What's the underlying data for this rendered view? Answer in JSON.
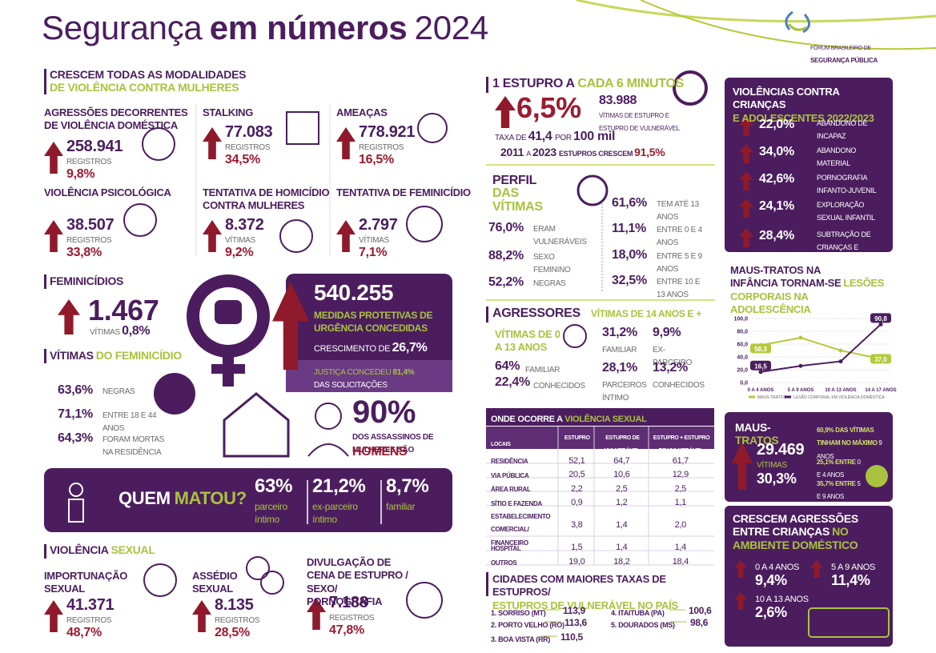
{
  "header": {
    "title_light": "Segurança",
    "title_bold": "em números",
    "year": "2024",
    "logo_line1": "FÓRUM BRASILEIRO DE",
    "logo_line2": "SEGURANÇA PÚBLICA"
  },
  "violencia_mulheres": {
    "heading": "CRESCEM TODAS AS MODALIDADES",
    "heading_highlight": "DE VIOLÊNCIA CONTRA MULHERES",
    "items": [
      {
        "label": "AGRESSÕES DECORRENTES DE VIOLÊNCIA DOMÉSTICA",
        "value": "258.941",
        "unit": "REGISTROS",
        "growth": "9,8%"
      },
      {
        "label": "STALKING",
        "value": "77.083",
        "unit": "REGISTROS",
        "growth": "34,5%"
      },
      {
        "label": "AMEAÇAS",
        "value": "778.921",
        "unit": "REGISTROS",
        "growth": "16,5%"
      },
      {
        "label": "VIOLÊNCIA PSICOLÓGICA",
        "value": "38.507",
        "unit": "REGISTROS",
        "growth": "33,8%"
      },
      {
        "label": "TENTATIVA DE HOMICÍDIO CONTRA MULHERES",
        "value": "8.372",
        "unit": "VÍTIMAS",
        "growth": "9,2%"
      },
      {
        "label": "TENTATIVA DE FEMINICÍDIO",
        "value": "2.797",
        "unit": "VÍTIMAS",
        "growth": "7,1%"
      }
    ]
  },
  "feminicidios": {
    "heading": "FEMINICÍDIOS",
    "value": "1.467",
    "unit": "VÍTIMAS",
    "growth": "0,8%"
  },
  "medidas": {
    "value": "540.255",
    "label": "MEDIDAS PROTETIVAS DE URGÊNCIA CONCEDIDAS",
    "growth_label": "CRESCIMENTO DE",
    "growth": "26,7%",
    "granted_label": "JUSTIÇA CONCEDEU",
    "granted": "81,4%",
    "granted_suffix": "DAS SOLICITAÇÕES"
  },
  "vitimas_feminicidio": {
    "heading": "VÍTIMAS",
    "heading_highlight": "DO FEMINICÍDIO",
    "rows": [
      {
        "value": "63,6%",
        "label": "NEGRAS"
      },
      {
        "value": "71,1%",
        "label": "ENTRE 18 E 44 ANOS"
      },
      {
        "value": "64,3%",
        "label": "FORAM MORTAS NA RESIDÊNCIA"
      }
    ]
  },
  "assassinos": {
    "value": "90%",
    "label": "DOS ASSASSINOS DE MULHERES SÃO",
    "highlight": "HOMENS"
  },
  "quem_matou": {
    "title": "QUEM",
    "title_highlight": "MATOU?",
    "stats": [
      {
        "value": "63%",
        "label": "parceiro íntimo"
      },
      {
        "value": "21,2%",
        "label": "ex-parceiro íntimo"
      },
      {
        "value": "8,7%",
        "label": "familiar"
      }
    ]
  },
  "violencia_sexual": {
    "heading": "VIOLÊNCIA",
    "heading_highlight": "SEXUAL",
    "items": [
      {
        "label": "IMPORTUNAÇÃO SEXUAL",
        "value": "41.371",
        "unit": "REGISTROS",
        "growth": "48,7%"
      },
      {
        "label": "ASSÉDIO SEXUAL",
        "value": "8.135",
        "unit": "REGISTROS",
        "growth": "28,5%"
      },
      {
        "label": "DIVULGAÇÃO DE CENA DE ESTUPRO / SEXO/ PORNOGRAFIA",
        "value": "7.188",
        "unit": "REGISTROS",
        "growth": "47,8%"
      }
    ]
  },
  "estupro": {
    "heading": "1 ESTUPRO A",
    "heading_highlight": "CADA 6 MINUTOS",
    "growth": "6,5%",
    "value": "83.988",
    "value_label": "VÍTIMAS DE ESTUPRO E ESTUPRO DE VULNERÁVEL",
    "rate_prefix": "TAXA DE",
    "rate": "41,4",
    "rate_mid": "POR",
    "rate_base": "100 mil",
    "from": "2011",
    "to_word": "A",
    "to": "2023",
    "trend_label": "ESTUPROS CRESCEM",
    "trend": "91,5%"
  },
  "perfil": {
    "heading": "PERFIL",
    "heading_highlight": "DAS VÍTIMAS",
    "left": [
      {
        "value": "76,0%",
        "label": "ERAM VULNERÁVEIS"
      },
      {
        "value": "88,2%",
        "label": "SEXO FEMININO"
      },
      {
        "value": "52,2%",
        "label": "NEGRAS"
      }
    ],
    "right": [
      {
        "value": "61,6%",
        "label": "TEM ATÉ 13 ANOS"
      },
      {
        "value": "11,1%",
        "label": "ENTRE 0 E 4 ANOS"
      },
      {
        "value": "18,0%",
        "label": "ENTRE 5 E 9 ANOS"
      },
      {
        "value": "32,5%",
        "label": "ENTRE 10 E 13 ANOS"
      }
    ]
  },
  "agressores": {
    "heading": "AGRESSORES",
    "group_a": {
      "label": "VÍTIMAS DE 0 A 13 ANOS",
      "stats": [
        {
          "value": "64%",
          "label": "FAMILIAR"
        },
        {
          "value": "22,4%",
          "label": "CONHECIDOS"
        }
      ]
    },
    "group_b": {
      "label": "VÍTIMAS DE 14 ANOS E +",
      "stats": [
        {
          "value": "31,2%",
          "label": "FAMILIAR"
        },
        {
          "value": "9,9%",
          "label": "EX-PARCEIRO"
        },
        {
          "value": "28,1%",
          "label": "PARCEIROS ÍNTIMO"
        },
        {
          "value": "13,2%",
          "label": "CONHECIDOS"
        }
      ]
    }
  },
  "table": {
    "title": "ONDE OCORRE A",
    "title_highlight": "VIOLÊNCIA SEXUAL",
    "columns": [
      "LOCAIS",
      "ESTUPRO",
      "ESTUPRO DE VULNERÁVEL",
      "ESTUPRO + ESTUPRO DE VULNERÁVEL"
    ],
    "rows": [
      [
        "RESIDÊNCIA",
        "52,1",
        "64,7",
        "61,7"
      ],
      [
        "VIA PÚBLICA",
        "20,5",
        "10,6",
        "12,9"
      ],
      [
        "ÁREA RURAL",
        "2,2",
        "2,5",
        "2,5"
      ],
      [
        "SÍTIO E FAZENDA",
        "0,9",
        "1,2",
        "1,1"
      ],
      [
        "ESTABELECIMENTO COMERCIAL/ FINANCEIRO",
        "3,8",
        "1,4",
        "2,0"
      ],
      [
        "HOSPITAL",
        "1,5",
        "1,4",
        "1,4"
      ],
      [
        "OUTROS",
        "19,0",
        "18,2",
        "18,4"
      ]
    ]
  },
  "cidades": {
    "heading": "CIDADES COM MAIORES TAXAS DE ESTUPROS/",
    "heading_highlight": "ESTUPROS DE VULNERÁVEL NO PAÍS",
    "items": [
      {
        "name": "1. SORRISO (MT)",
        "value": "113,9"
      },
      {
        "name": "2. PORTO VELHO (RO)",
        "value": "113,6"
      },
      {
        "name": "3. BOA VISTA (RR)",
        "value": "110,5"
      },
      {
        "name": "4. ITAITUBA (PA)",
        "value": "100,6"
      },
      {
        "name": "5. DOURADOS (MS)",
        "value": "98,6"
      }
    ]
  },
  "criancas": {
    "heading": "VIOLÊNCIAS CONTRA CRIANÇAS",
    "heading_highlight": "E ADOLESCENTES 2022/2023",
    "rows": [
      {
        "value": "22,0%",
        "label": "ABANDONO DE INCAPAZ"
      },
      {
        "value": "34,0%",
        "label": "ABANDONO MATERIAL"
      },
      {
        "value": "42,6%",
        "label": "PORNOGRAFIA INFANTO-JUVENIL"
      },
      {
        "value": "24,1%",
        "label": "EXPLORAÇÃO SEXUAL INFANTIL"
      },
      {
        "value": "28,4%",
        "label": "SUBTRAÇÃO DE CRIANÇAS E ADOLESCENTES"
      }
    ]
  },
  "chart_data": {
    "type": "line",
    "title": "MAUS-TRATOS NA INFÂNCIA",
    "title_mid": "TORNAM-SE",
    "title_highlight": "LESÕES CORPORAIS NA ADOLESCÊNCIA",
    "categories": [
      "0 A 4 ANOS",
      "5 A 9 ANOS",
      "10 A 13 ANOS",
      "14 A 17 ANOS"
    ],
    "series": [
      {
        "name": "MAUS-TRATOS",
        "color": "#b5c93a",
        "values": [
          58.3,
          70,
          50,
          37.0
        ],
        "value_labels": [
          "58,3",
          null,
          null,
          "37,0"
        ]
      },
      {
        "name": "LESÃO CORPORAL EM VIOLÊNCIA DOMÉSTICA",
        "color": "#4b1d5e",
        "values": [
          16.5,
          26,
          33,
          90.8
        ],
        "value_labels": [
          "16,5",
          null,
          null,
          "90,8"
        ]
      }
    ],
    "ylim": [
      0,
      100
    ],
    "yticks": [
      {
        "value": 0,
        "label": "0,0"
      },
      {
        "value": 20,
        "label": "20,0"
      },
      {
        "value": 40,
        "label": "40,0"
      },
      {
        "value": 60,
        "label": "60,0"
      },
      {
        "value": 80,
        "label": "80,0"
      },
      {
        "value": 100,
        "label": "100,0"
      }
    ],
    "grid": true
  },
  "maus_tratos": {
    "title": "MAUS-",
    "title_highlight": "TRATOS",
    "value": "29.469",
    "unit": "VÍTIMAS",
    "growth": "30,3%",
    "notes": [
      {
        "text": "60,9% DAS VÍTIMAS TINHAM NO MÁXIMO",
        "highlight": "9 ANOS"
      },
      {
        "text": "25,1% ENTRE",
        "highlight": "0 E 4 ANOS"
      },
      {
        "text": "35,7% ENTRE",
        "highlight": "5 E 9 ANOS"
      }
    ]
  },
  "agressoes_criancas": {
    "heading": "CRESCEM AGRESSÕES ENTRE CRIANÇAS",
    "heading_highlight": "NO AMBIENTE DOMÉSTICO",
    "items": [
      {
        "label": "0 A 4 ANOS",
        "value": "9,4%"
      },
      {
        "label": "5 A 9 ANOS",
        "value": "11,4%"
      },
      {
        "label": "10 A 13 ANOS",
        "value": "2,6%"
      }
    ]
  }
}
